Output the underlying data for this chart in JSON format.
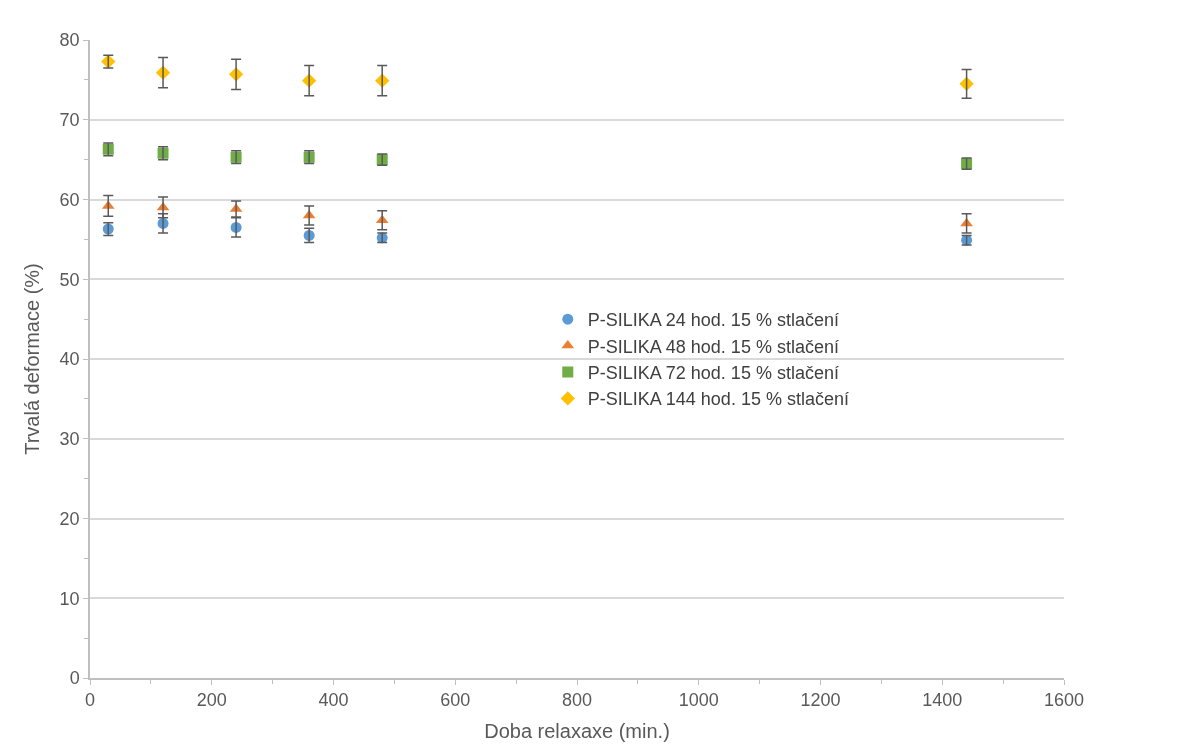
{
  "chart_data": {
    "type": "scatter",
    "xlabel": "Doba relaxaxe (min.)",
    "ylabel": "Trvalá deformace (%)",
    "x": [
      30,
      120,
      240,
      360,
      480,
      1440
    ],
    "xlim": [
      0,
      1600
    ],
    "xticks": [
      0,
      200,
      400,
      600,
      800,
      1000,
      1200,
      1400,
      1600
    ],
    "ylim": [
      0,
      80
    ],
    "yticks": [
      0,
      10,
      20,
      30,
      40,
      50,
      60,
      70,
      80
    ],
    "grid": "y",
    "legend": "right",
    "series": [
      {
        "name": "P-SILIKA 24 hod. 15 % stlačení",
        "color": "#5b9bd5",
        "marker": "circle",
        "values": [
          56.3,
          57.0,
          56.5,
          55.5,
          55.2,
          54.9
        ],
        "errors": [
          0.8,
          1.2,
          1.2,
          0.9,
          0.6,
          0.6
        ]
      },
      {
        "name": "P-SILIKA 48 hod. 15 % stlačení",
        "color": "#ed7d31",
        "marker": "triangle",
        "values": [
          59.2,
          59.0,
          58.8,
          58.0,
          57.4,
          57.0
        ],
        "errors": [
          1.3,
          1.3,
          1.0,
          1.2,
          1.2,
          1.2
        ]
      },
      {
        "name": "P-SILIKA 72 hod. 15 % stlačení",
        "color": "#70ad47",
        "marker": "square",
        "values": [
          66.3,
          65.8,
          65.3,
          65.3,
          65.0,
          64.5
        ],
        "errors": [
          0.8,
          0.8,
          0.8,
          0.8,
          0.7,
          0.7
        ]
      },
      {
        "name": "P-SILIKA 144 hod. 15 % stlačení",
        "color": "#ffc000",
        "marker": "diamond",
        "values": [
          77.3,
          75.9,
          75.7,
          74.9,
          74.9,
          74.5
        ],
        "errors": [
          0.8,
          1.9,
          1.9,
          1.9,
          1.9,
          1.8
        ]
      }
    ]
  }
}
